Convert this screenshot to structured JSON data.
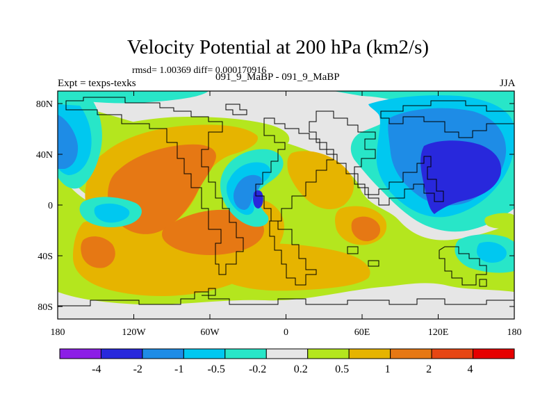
{
  "title": "Velocity Potential at 200 hPa (km2/s)",
  "stats": "rmsd= 1.00369 diff= 0.000170916",
  "subtitle": "091_9_MaBP - 091_9_MaBP",
  "experiment": "Expt = texps-texks",
  "season": "JJA",
  "map": {
    "x_ticks": [
      "180",
      "120W",
      "60W",
      "0",
      "60E",
      "120E",
      "180"
    ],
    "y_ticks": [
      "80N",
      "40N",
      "0",
      "40S",
      "80S"
    ]
  },
  "colorbar": {
    "colors": [
      "#8c1ee6",
      "#2828dc",
      "#1e8ce6",
      "#00c8f0",
      "#28e6c8",
      "#e6e6e6",
      "#b4e61e",
      "#e6b400",
      "#e67814",
      "#e64614",
      "#e60000"
    ],
    "labels": [
      "-4",
      "-2",
      "-1",
      "-0.5",
      "-0.2",
      "0.2",
      "0.5",
      "1",
      "2",
      "4"
    ]
  }
}
